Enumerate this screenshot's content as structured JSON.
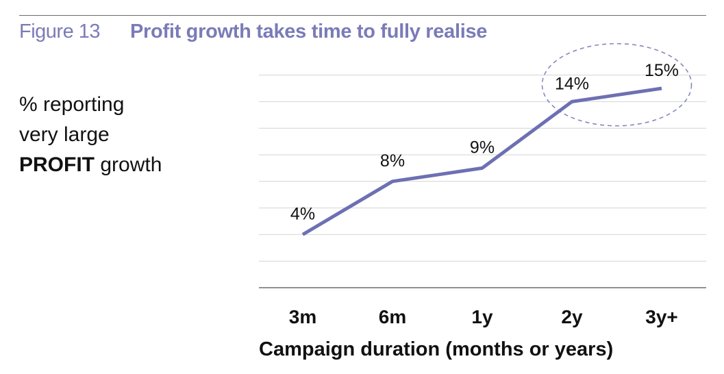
{
  "figure": {
    "number": "Figure 13",
    "title": "Profit growth takes time to fully realise"
  },
  "y_label": {
    "line1": "% reporting",
    "line2": "very large",
    "bold_word": "PROFIT",
    "rest": " growth"
  },
  "colors": {
    "accent": "#7a7bb8",
    "line": "#6d70b2",
    "grid": "#d4d4d4",
    "axis": "#6b6b6b",
    "highlight_ellipse": "#8587bf"
  },
  "chart_data": {
    "type": "line",
    "categories": [
      "3m",
      "6m",
      "1y",
      "2y",
      "3y+"
    ],
    "series": [
      {
        "values": [
          4,
          8,
          9,
          14,
          15
        ]
      }
    ],
    "data_labels": [
      "4%",
      "8%",
      "9%",
      "14%",
      "15%"
    ],
    "xlabel": "Campaign duration (months or years)",
    "ylim": [
      0,
      16
    ],
    "grid": true,
    "highlighted_categories": [
      "2y",
      "3y+"
    ]
  }
}
